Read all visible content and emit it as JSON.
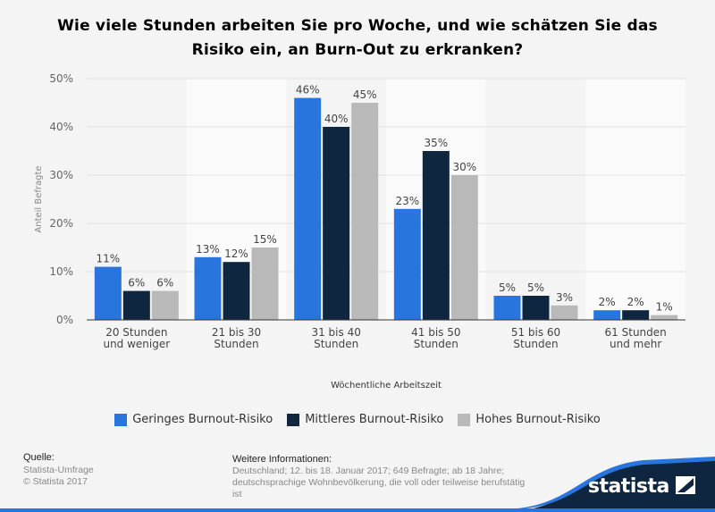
{
  "title": "Wie viele Stunden arbeiten Sie pro Woche, und wie schätzen Sie das Risiko ein, an Burn-Out zu erkranken?",
  "chart_data": {
    "type": "bar",
    "title": "Wie viele Stunden arbeiten Sie pro Woche, und wie schätzen Sie das Risiko ein, an Burn-Out zu erkranken?",
    "xlabel": "Wöchentliche Arbeitszeit",
    "ylabel": "Anteil Befragte",
    "ylim": [
      0,
      50
    ],
    "yticks": [
      "0%",
      "10%",
      "20%",
      "30%",
      "40%",
      "50%"
    ],
    "grid": true,
    "legend_position": "bottom",
    "categories": [
      [
        "20 Stunden",
        "und weniger"
      ],
      [
        "21 bis 30",
        "Stunden"
      ],
      [
        "31 bis 40",
        "Stunden"
      ],
      [
        "41 bis 50",
        "Stunden"
      ],
      [
        "51 bis 60",
        "Stunden"
      ],
      [
        "61 Stunden",
        "und mehr"
      ]
    ],
    "series": [
      {
        "name": "Geringes Burnout-Risiko",
        "color": "#2876dd",
        "values": [
          11,
          13,
          46,
          23,
          5,
          2
        ]
      },
      {
        "name": "Mittleres Burnout-Risiko",
        "color": "#0f2641",
        "values": [
          6,
          12,
          40,
          35,
          5,
          2
        ]
      },
      {
        "name": "Hohes Burnout-Risiko",
        "color": "#b9b9b9",
        "values": [
          6,
          15,
          45,
          30,
          3,
          1
        ]
      }
    ]
  },
  "footer": {
    "source_heading": "Quelle:",
    "source": "Statista-Umfrage",
    "copyright": "© Statista 2017",
    "info_heading": "Weitere Informationen:",
    "info": "Deutschland; 12. bis 18. Januar 2017; 649 Befragte; ab 18 Jahre; deutschsprachige Wohnbevölkerung, die voll oder teilweise berufstätig ist",
    "logo": "statista"
  }
}
